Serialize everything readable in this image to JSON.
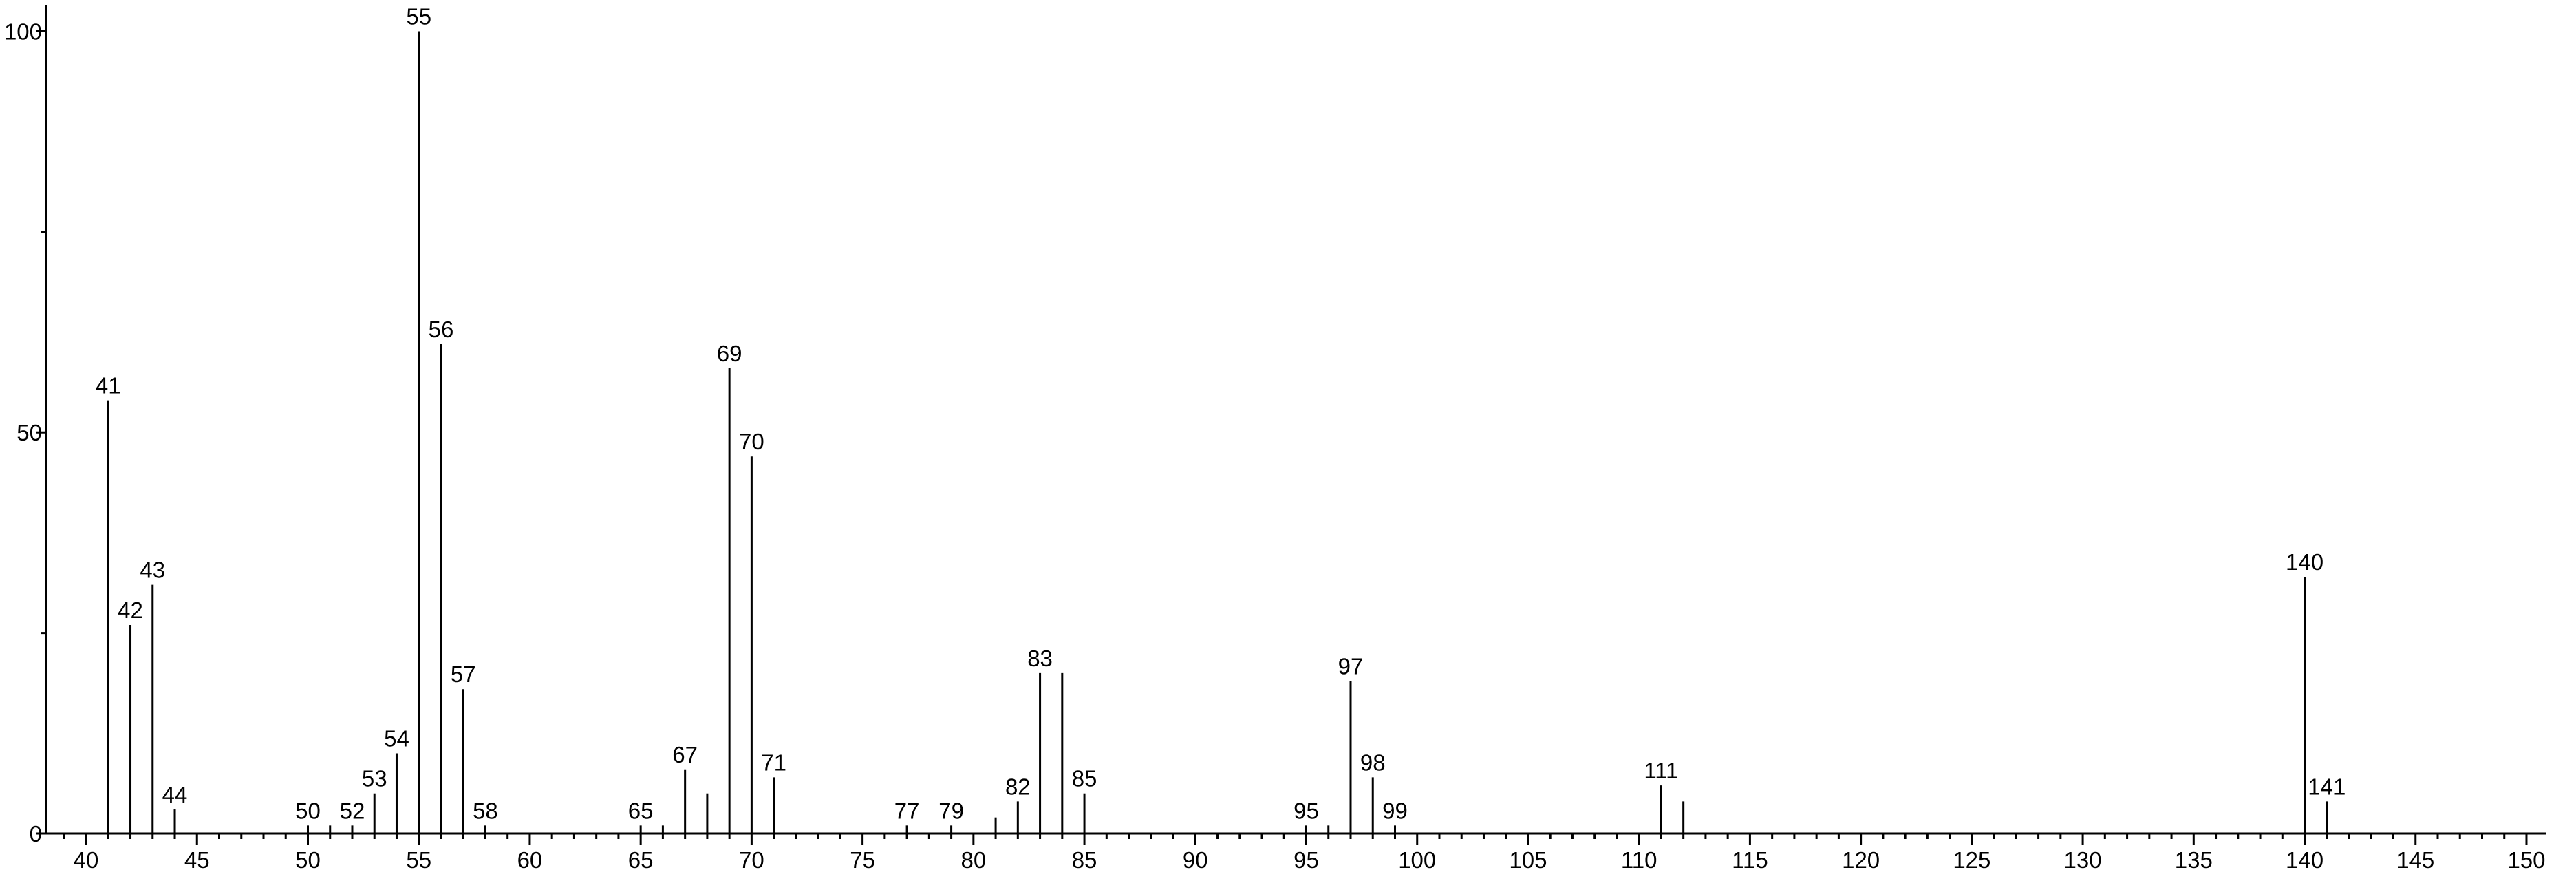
{
  "chart_data": {
    "type": "stem",
    "x": [
      41,
      42,
      43,
      44,
      50,
      51,
      52,
      53,
      54,
      55,
      56,
      57,
      58,
      65,
      66,
      67,
      68,
      69,
      70,
      71,
      77,
      79,
      81,
      82,
      83,
      84,
      85,
      95,
      96,
      97,
      98,
      99,
      111,
      112,
      140,
      141
    ],
    "values": [
      54,
      26,
      31,
      3,
      1,
      1,
      1,
      5,
      10,
      100,
      61,
      18,
      1,
      1,
      1,
      8,
      5,
      58,
      47,
      7,
      1,
      1,
      2,
      4,
      20,
      20,
      5,
      1,
      1,
      19,
      7,
      1,
      6,
      4,
      32,
      4
    ],
    "x_labels": [
      41,
      42,
      43,
      44,
      50,
      null,
      52,
      53,
      54,
      55,
      56,
      57,
      58,
      65,
      null,
      67,
      null,
      69,
      70,
      71,
      77,
      79,
      null,
      82,
      83,
      null,
      85,
      95,
      null,
      97,
      98,
      99,
      111,
      null,
      140,
      141
    ],
    "color": "#000000",
    "xlim": [
      38.2,
      150.9
    ],
    "xticks": [
      40,
      45,
      50,
      55,
      60,
      65,
      70,
      75,
      80,
      85,
      90,
      95,
      100,
      105,
      110,
      115,
      120,
      125,
      130,
      135,
      140,
      145,
      150
    ],
    "x_minor_ticks": [
      39,
      41,
      42,
      43,
      44,
      46,
      47,
      48,
      49,
      51,
      52,
      53,
      54,
      56,
      57,
      58,
      59,
      61,
      62,
      63,
      64,
      66,
      67,
      68,
      69,
      71,
      72,
      73,
      74,
      76,
      77,
      78,
      79,
      81,
      82,
      83,
      84,
      86,
      87,
      88,
      89,
      91,
      92,
      93,
      94,
      96,
      97,
      98,
      99,
      101,
      102,
      103,
      104,
      106,
      107,
      108,
      109,
      111,
      112,
      113,
      114,
      116,
      117,
      118,
      119,
      121,
      122,
      123,
      124,
      126,
      127,
      128,
      129,
      131,
      132,
      133,
      134,
      136,
      137,
      138,
      139,
      141,
      142,
      143,
      144,
      146,
      147,
      148,
      149
    ],
    "ylim": [
      0,
      103.3
    ],
    "yticks": [
      0,
      50,
      100
    ],
    "y_minor_ticks": [
      25,
      75
    ]
  }
}
